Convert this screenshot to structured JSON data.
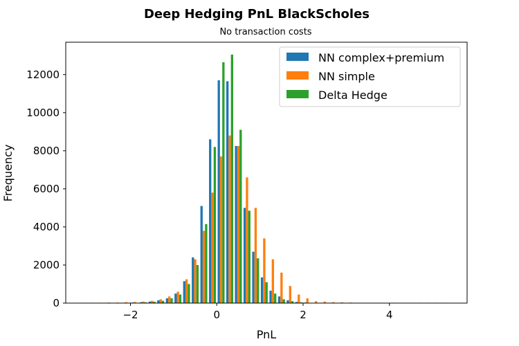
{
  "chart_data": {
    "type": "bar",
    "title": "Deep Hedging PnL BlackScholes",
    "subtitle": "No transaction costs",
    "xlabel": "PnL",
    "ylabel": "Frequency",
    "xlim": [
      -3.5,
      5.8
    ],
    "ylim": [
      0,
      13700
    ],
    "grid": false,
    "legend_position": "top-right",
    "xticks": [
      -2,
      0,
      2,
      4
    ],
    "xtick_labels": [
      "−2",
      "0",
      "2",
      "4"
    ],
    "yticks": [
      0,
      2000,
      4000,
      6000,
      8000,
      10000,
      12000
    ],
    "ytick_labels": [
      "0",
      "2000",
      "4000",
      "6000",
      "8000",
      "10000",
      "12000"
    ],
    "bin_width": 0.2,
    "x": [
      -3.1,
      -2.9,
      -2.7,
      -2.5,
      -2.3,
      -2.1,
      -1.9,
      -1.7,
      -1.5,
      -1.3,
      -1.1,
      -0.9,
      -0.7,
      -0.5,
      -0.3,
      -0.1,
      0.1,
      0.3,
      0.5,
      0.7,
      0.9,
      1.1,
      1.3,
      1.5,
      1.7,
      1.9,
      2.1,
      2.3,
      2.5,
      2.7,
      2.9,
      3.1,
      3.3,
      3.5,
      3.7,
      3.9,
      4.1,
      4.3,
      4.5,
      4.7,
      4.9,
      5.1,
      5.3
    ],
    "series": [
      {
        "name": "NN complex+premium",
        "color": "#1f77b4",
        "values": [
          0,
          0,
          0,
          0,
          10,
          20,
          30,
          50,
          80,
          150,
          250,
          500,
          1150,
          2400,
          5100,
          8600,
          11700,
          11650,
          8250,
          5000,
          2700,
          1350,
          650,
          350,
          150,
          60,
          30,
          15,
          10,
          5,
          5,
          0,
          0,
          0,
          0,
          0,
          0,
          0,
          0,
          0,
          0,
          0,
          0
        ]
      },
      {
        "name": "NN simple",
        "color": "#ff7f0e",
        "values": [
          20,
          20,
          20,
          30,
          30,
          50,
          60,
          80,
          120,
          200,
          350,
          600,
          1250,
          2300,
          3800,
          5800,
          7700,
          8800,
          8250,
          6600,
          5000,
          3400,
          2300,
          1600,
          900,
          450,
          250,
          100,
          80,
          50,
          40,
          30,
          20,
          20,
          20,
          20,
          20,
          20,
          20,
          20,
          20,
          20,
          20
        ]
      },
      {
        "name": "Delta Hedge",
        "color": "#2ca02c",
        "values": [
          0,
          0,
          0,
          0,
          5,
          10,
          20,
          40,
          70,
          120,
          250,
          450,
          1000,
          2000,
          4150,
          8200,
          12650,
          13050,
          9100,
          4850,
          2350,
          1100,
          500,
          200,
          100,
          40,
          20,
          10,
          5,
          0,
          0,
          0,
          0,
          0,
          0,
          0,
          0,
          0,
          0,
          0,
          0,
          0,
          0
        ]
      }
    ]
  }
}
